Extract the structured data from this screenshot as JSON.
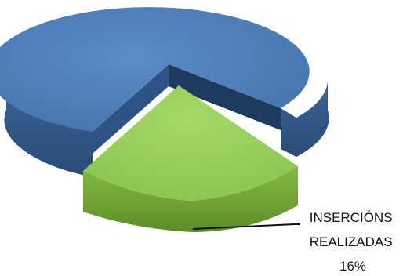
{
  "chart_data": {
    "type": "pie",
    "style": "3d-exploded",
    "title": "",
    "slices": [
      {
        "value": 84,
        "color": "#4f81bd"
      },
      {
        "label_lines": [
          "INSERCIÓNS",
          "REALIZADAS",
          "16%"
        ],
        "value": 16,
        "color": "#92d050"
      }
    ]
  }
}
